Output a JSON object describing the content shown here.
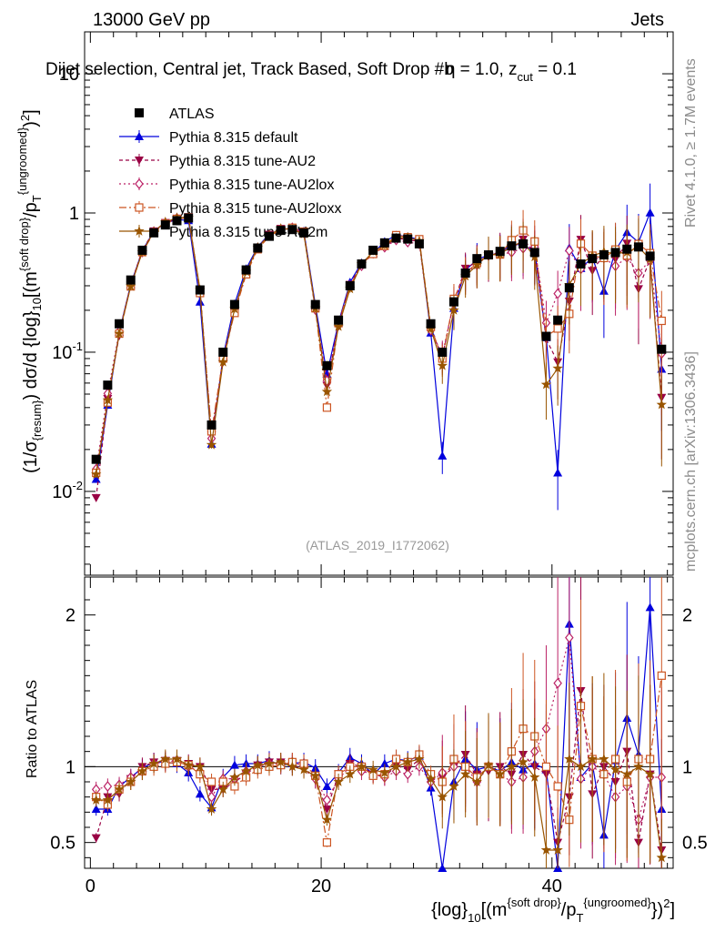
{
  "header": {
    "left": "13000 GeV pp",
    "right": "Jets"
  },
  "side": {
    "rivet": "Rivet 4.1.0, ≥ 1.7M events",
    "mcplots": "mcplots.cern.ch [arXiv:1306.3436]"
  },
  "colors": {
    "atlas": "#000000",
    "default": "#0000dd",
    "au2": "#990044",
    "au2lox": "#bb2266",
    "au2loxx": "#cc5522",
    "au2m": "#995500"
  },
  "chart_data": {
    "type": "line",
    "title": "Dijet selection, Central jet, Track Based, Soft Drop #b = 1.0, z_cut = 0.1",
    "title_main": "Dijet selection, Central jet, Track Based, Soft Drop #b",
    "title_beta": "η = 1.0, z",
    "title_zcut": "cut",
    "title_tail": " = 0.1",
    "watermark": "(ATLAS_2019_I1772062)",
    "xlabel": "{log}10[(m^{soft drop}/p_T^{ungroomed})^2]",
    "ylabel": "(1/σ{resum}) dσ/d {log}10[(m^{soft drop}/p_T^{ungroomed})^2]",
    "ratio_ylabel": "Ratio to ATLAS",
    "xlim": [
      -0.5,
      50.5
    ],
    "ylim_main_log": [
      0.0025,
      20
    ],
    "ylim_ratio": [
      0.33,
      2.25
    ],
    "x_ticks": [
      "0",
      "20",
      "40"
    ],
    "y_ticks_main": [
      "10^-2",
      "10^-1",
      "1",
      "10"
    ],
    "y_ticks_ratio": [
      "0.5",
      "1",
      "2"
    ],
    "legend": [
      "ATLAS",
      "Pythia 8.315 default",
      "Pythia 8.315 tune-AU2",
      "Pythia 8.315 tune-AU2lox",
      "Pythia 8.315 tune-AU2loxx",
      "Pythia 8.315 tune-AU2m"
    ],
    "x": [
      0.5,
      1.5,
      2.5,
      3.5,
      4.5,
      5.5,
      6.5,
      7.5,
      8.5,
      9.5,
      10.5,
      11.5,
      12.5,
      13.5,
      14.5,
      15.5,
      16.5,
      17.5,
      18.5,
      19.5,
      20.5,
      21.5,
      22.5,
      23.5,
      24.5,
      25.5,
      26.5,
      27.5,
      28.5,
      29.5,
      30.5,
      31.5,
      32.5,
      33.5,
      34.5,
      35.5,
      36.5,
      37.5,
      38.5,
      39.5,
      40.5,
      41.5,
      42.5,
      43.5,
      44.5,
      45.5,
      46.5,
      47.5,
      48.5,
      49.5
    ],
    "atlas": [
      0.017,
      0.058,
      0.16,
      0.33,
      0.54,
      0.72,
      0.82,
      0.88,
      0.92,
      0.28,
      0.03,
      0.1,
      0.22,
      0.39,
      0.56,
      0.68,
      0.75,
      0.76,
      0.72,
      0.22,
      0.08,
      0.17,
      0.3,
      0.43,
      0.54,
      0.61,
      0.66,
      0.65,
      0.6,
      0.16,
      0.1,
      0.23,
      0.37,
      0.47,
      0.5,
      0.53,
      0.58,
      0.6,
      0.52,
      0.13,
      0.17,
      0.29,
      0.43,
      0.47,
      0.5,
      0.52,
      0.55,
      0.57,
      0.49,
      0.105
    ],
    "series": [
      {
        "name": "Pythia 8.315 default",
        "color": "#0000dd",
        "ratio": [
          0.72,
          0.72,
          0.87,
          0.93,
          0.99,
          1.03,
          1.03,
          1.02,
          0.96,
          0.82,
          0.73,
          0.93,
          1.01,
          1.02,
          1.02,
          1.04,
          1.01,
          1.02,
          1.03,
          0.99,
          0.87,
          0.96,
          1.06,
          1.02,
          0.95,
          1.02,
          1.05,
          1.04,
          1.07,
          0.86,
          0.18,
          0.9,
          1.05,
          0.98,
          1.0,
          0.97,
          1.03,
          0.98,
          1.02,
          0.98,
          0.08,
          1.94,
          0.93,
          1.02,
          0.55,
          1.04,
          1.32,
          1.08,
          2.05,
          0.72
        ]
      },
      {
        "name": "Pythia 8.315 tune-AU2",
        "color": "#990044",
        "ratio": [
          0.53,
          0.8,
          0.82,
          0.92,
          1.0,
          1.03,
          1.04,
          1.04,
          1.02,
          1.0,
          0.85,
          0.85,
          0.9,
          0.95,
          1.01,
          1.03,
          1.03,
          1.0,
          0.99,
          0.91,
          0.72,
          0.95,
          1.02,
          1.0,
          0.95,
          0.93,
          1.01,
          0.98,
          1.05,
          0.91,
          0.93,
          1.0,
          1.08,
          0.95,
          0.97,
          1.0,
          0.95,
          1.08,
          1.0,
          0.95,
          0.5,
          0.8,
          1.5,
          0.82,
          1.0,
          0.9,
          1.1,
          0.5,
          0.95,
          0.45
        ]
      },
      {
        "name": "Pythia 8.315 tune-AU2lox",
        "color": "#bb2266",
        "ratio": [
          0.85,
          0.87,
          0.88,
          0.93,
          0.97,
          1.02,
          1.03,
          1.04,
          1.0,
          0.97,
          0.8,
          0.92,
          0.92,
          0.97,
          1.0,
          1.02,
          1.02,
          1.03,
          1.0,
          0.92,
          0.78,
          0.92,
          1.0,
          0.97,
          0.95,
          0.93,
          0.97,
          0.95,
          1.0,
          0.9,
          0.96,
          1.0,
          1.0,
          0.9,
          1.0,
          0.95,
          0.9,
          0.93,
          1.1,
          1.25,
          1.55,
          1.85,
          0.92,
          1.0,
          0.95,
          0.8,
          0.87,
          0.65,
          0.93,
          0.93
        ]
      },
      {
        "name": "Pythia 8.315 tune-AU2loxx",
        "color": "#cc5522",
        "ratio": [
          0.8,
          0.75,
          0.85,
          0.9,
          0.97,
          1.0,
          1.02,
          1.03,
          1.01,
          0.95,
          0.9,
          0.9,
          0.87,
          0.93,
          0.98,
          1.0,
          1.01,
          1.03,
          1.02,
          0.94,
          0.5,
          0.95,
          1.0,
          1.0,
          0.94,
          0.95,
          1.05,
          1.03,
          1.08,
          0.95,
          0.9,
          1.05,
          1.0,
          0.93,
          1.0,
          0.95,
          1.1,
          1.25,
          1.2,
          1.0,
          0.87,
          0.65,
          1.4,
          1.05,
          0.95,
          1.05,
          0.9,
          1.05,
          1.05,
          1.6
        ]
      },
      {
        "name": "Pythia 8.315 tune-AU2m",
        "color": "#995500",
        "ratio": [
          0.78,
          0.78,
          0.85,
          0.9,
          0.97,
          1.02,
          1.05,
          1.05,
          1.01,
          1.0,
          0.72,
          0.85,
          0.93,
          0.97,
          1.01,
          1.02,
          1.03,
          1.0,
          0.98,
          0.94,
          0.65,
          0.9,
          0.95,
          1.0,
          0.98,
          0.96,
          1.0,
          1.03,
          1.05,
          0.92,
          0.8,
          0.87,
          0.95,
          0.9,
          1.01,
          0.95,
          1.0,
          1.03,
          0.93,
          0.45,
          0.45,
          1.05,
          1.0,
          1.05,
          1.05,
          0.98,
          0.95,
          1.0,
          0.95,
          0.4
        ]
      }
    ]
  }
}
